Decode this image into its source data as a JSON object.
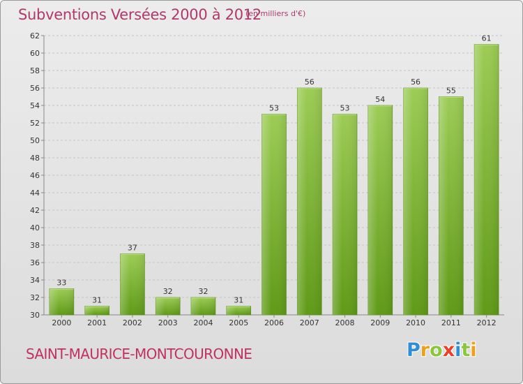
{
  "header": {
    "title": "Subventions Versées 2000 à 2012",
    "subtitle": "(en milliers d'€)"
  },
  "footer": {
    "place_name": "SAINT-MAURICE-MONTCOURONNE",
    "brand": "Proxiti"
  },
  "chart_data": {
    "type": "bar",
    "title": "Subventions Versées 2000 à 2012",
    "subtitle": "(en milliers d'€)",
    "xlabel": "",
    "ylabel": "",
    "categories": [
      "2000",
      "2001",
      "2002",
      "2003",
      "2004",
      "2005",
      "2006",
      "2007",
      "2008",
      "2009",
      "2010",
      "2011",
      "2012"
    ],
    "values": [
      33,
      31,
      37,
      32,
      32,
      31,
      53,
      56,
      53,
      54,
      56,
      55,
      61
    ],
    "ylim": [
      30,
      62
    ],
    "yticks": [
      30,
      32,
      34,
      36,
      38,
      40,
      42,
      44,
      46,
      48,
      50,
      52,
      54,
      56,
      58,
      60,
      62
    ],
    "grid": true,
    "bar_color": "#7ab82e"
  }
}
